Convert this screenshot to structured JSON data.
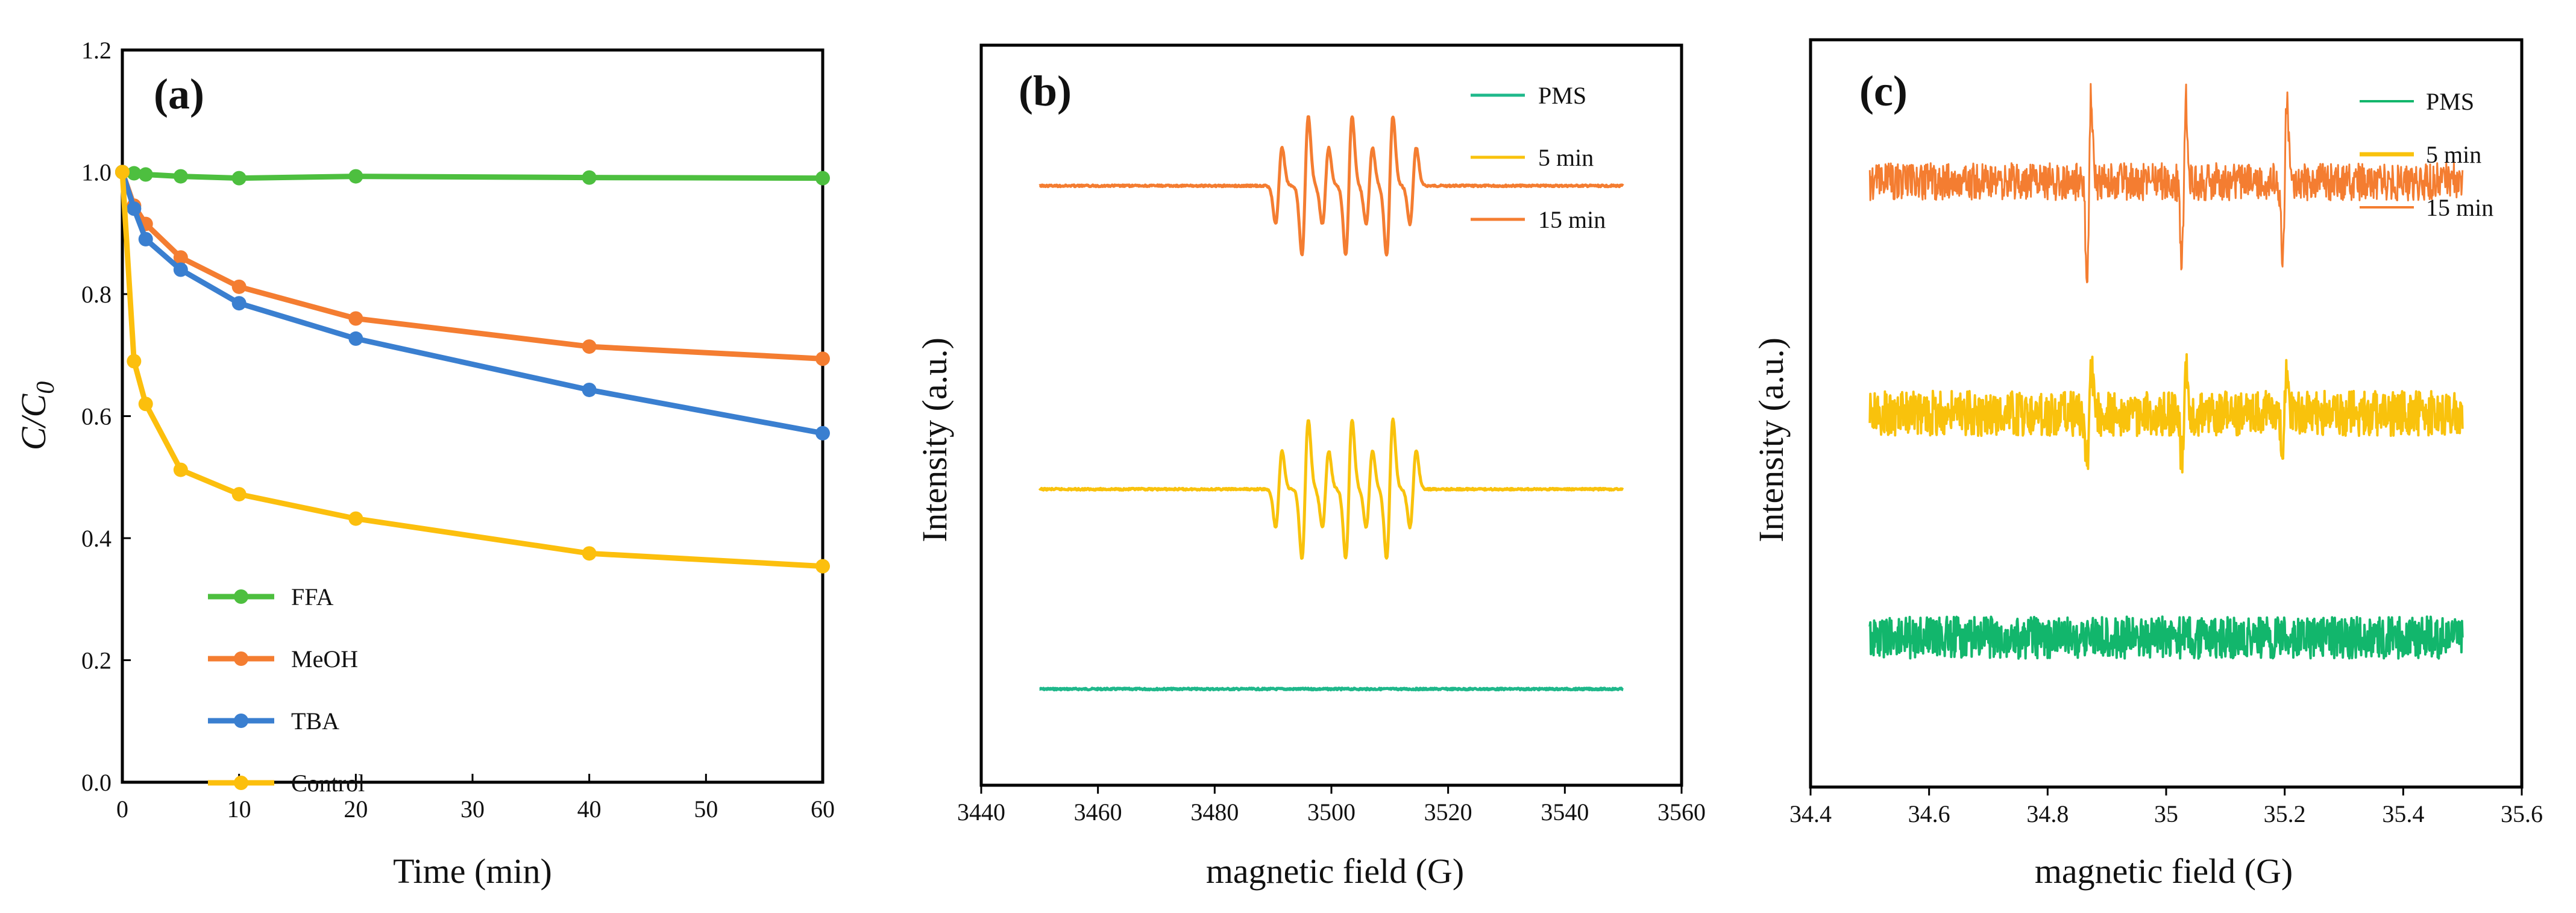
{
  "chart_data": [
    {
      "type": "line",
      "panel_label": "(a)",
      "xlabel": "Time (min)",
      "ylabel": "C/C",
      "ylabel_sub": "0",
      "xlim": [
        0,
        60
      ],
      "ylim": [
        0,
        1.2
      ],
      "xticks": [
        0,
        10,
        20,
        30,
        40,
        50,
        60
      ],
      "yticks": [
        "0.0",
        "0.2",
        "0.4",
        "0.6",
        "0.8",
        "1.0",
        "1.2"
      ],
      "yticks_values": [
        0,
        0.2,
        0.4,
        0.6,
        0.8,
        1.0,
        1.2
      ],
      "legend_position": "bottom-left",
      "x": [
        0,
        1,
        2,
        5,
        10,
        20,
        40,
        60
      ],
      "series": [
        {
          "name": "FFA",
          "color": "#4dbf3f",
          "values": [
            1.0,
            0.998,
            0.996,
            0.993,
            0.99,
            0.993,
            0.991,
            0.99
          ]
        },
        {
          "name": "MeOH",
          "color": "#f47d31",
          "values": [
            1.0,
            0.945,
            0.915,
            0.86,
            0.812,
            0.76,
            0.714,
            0.694
          ]
        },
        {
          "name": "TBA",
          "color": "#3a7fd0",
          "values": [
            1.0,
            0.94,
            0.89,
            0.84,
            0.785,
            0.727,
            0.643,
            0.572
          ]
        },
        {
          "name": "Control",
          "color": "#fcbf0d",
          "values": [
            1.0,
            0.69,
            0.62,
            0.512,
            0.472,
            0.432,
            0.375,
            0.354
          ]
        }
      ]
    },
    {
      "type": "line",
      "panel_label": "(b)",
      "xlabel": "magnetic field (G)",
      "ylabel": "Intensity (a.u.)",
      "xlim": [
        3440,
        3560
      ],
      "xticks": [
        "3440",
        "3460",
        "3480",
        "3500",
        "3520",
        "3540",
        "3560"
      ],
      "xticks_values": [
        3440,
        3460,
        3480,
        3500,
        3520,
        3540,
        3560
      ],
      "legend_position": "top-right",
      "series": [
        {
          "name": "PMS",
          "color": "#1fb88b",
          "data_range": [
            3450,
            3550
          ],
          "baseline_level": 0.13,
          "peak_centers": [],
          "peak_amplitudes": []
        },
        {
          "name": "5 min",
          "color": "#f9c20c",
          "data_range": [
            3450,
            3550
          ],
          "baseline_level": 0.4,
          "peak_centers": [
            3491.0,
            3495.5,
            3499.0,
            3503.0,
            3506.5,
            3510.0,
            3514.0
          ],
          "peak_amplitudes": [
            0.55,
            1.0,
            0.55,
            1.0,
            0.55,
            1.0,
            0.55
          ]
        },
        {
          "name": "15 min",
          "color": "#f47d31",
          "data_range": [
            3450,
            3550
          ],
          "baseline_level": 0.81,
          "peak_centers": [
            3491.0,
            3495.5,
            3499.0,
            3503.0,
            3506.5,
            3510.0,
            3514.0
          ],
          "peak_amplitudes": [
            0.55,
            1.0,
            0.55,
            1.0,
            0.55,
            1.0,
            0.55
          ]
        }
      ]
    },
    {
      "type": "line",
      "panel_label": "(c)",
      "xlabel": "magnetic field (G)",
      "ylabel": "Intensity (a.u.)",
      "xlim": [
        34.4,
        35.6
      ],
      "xticks": [
        "34.4",
        "34.6",
        "34.8",
        "35",
        "35.2",
        "35.4",
        "35.6"
      ],
      "xticks_values": [
        34.4,
        34.6,
        34.8,
        35.0,
        35.2,
        35.4,
        35.6
      ],
      "legend_position": "top-right",
      "series": [
        {
          "name": "PMS",
          "color": "#12b66c",
          "data_range": [
            34.5,
            35.5
          ],
          "baseline_level": 0.2,
          "noise_amplitude": 0.028,
          "peak_centers": [],
          "peak_amplitudes": []
        },
        {
          "name": "5 min",
          "color": "#f9c20c",
          "data_range": [
            34.5,
            35.5
          ],
          "baseline_level": 0.5,
          "noise_amplitude": 0.03,
          "peak_centers": [
            34.87,
            35.03,
            35.2
          ],
          "peak_amplitudes": [
            0.07,
            0.06,
            0.05
          ]
        },
        {
          "name": "15 min",
          "color": "#f47d31",
          "data_range": [
            34.5,
            35.5
          ],
          "baseline_level": 0.81,
          "noise_amplitude": 0.025,
          "peak_centers": [
            34.87,
            35.03,
            35.2
          ],
          "peak_amplitudes": [
            0.12,
            0.11,
            0.11
          ]
        }
      ]
    }
  ]
}
